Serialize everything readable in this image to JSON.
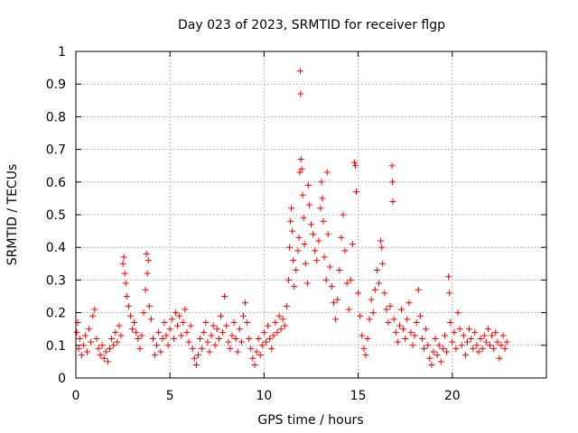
{
  "chart_data": {
    "type": "scatter",
    "title": "Day 023 of 2023, SRMTID for receiver flgp",
    "xlabel": "GPS time / hours",
    "ylabel": "SRMTID / TECUs",
    "xlim": [
      0,
      25
    ],
    "ylim": [
      0,
      1
    ],
    "xticks": [
      0,
      5,
      10,
      15,
      20
    ],
    "yticks": [
      0,
      0.1,
      0.2,
      0.3,
      0.4,
      0.5,
      0.6,
      0.7,
      0.8,
      0.9,
      1
    ],
    "xtick_labels": [
      "0",
      "5",
      "10",
      "15",
      "20"
    ],
    "ytick_labels": [
      "0",
      "0.1",
      "0.2",
      "0.3",
      "0.4",
      "0.5",
      "0.6",
      "0.7",
      "0.8",
      "0.9",
      "1"
    ],
    "grid": true,
    "marker": "plus",
    "marker_color": "#ff0000",
    "series": [
      {
        "name": "SRMTID",
        "points": [
          [
            0.05,
            0.14
          ],
          [
            0.1,
            0.17
          ],
          [
            0.15,
            0.09
          ],
          [
            0.2,
            0.12
          ],
          [
            0.3,
            0.07
          ],
          [
            0.4,
            0.1
          ],
          [
            0.5,
            0.13
          ],
          [
            0.6,
            0.08
          ],
          [
            0.7,
            0.15
          ],
          [
            0.8,
            0.11
          ],
          [
            0.9,
            0.19
          ],
          [
            1.0,
            0.21
          ],
          [
            1.1,
            0.12
          ],
          [
            1.2,
            0.09
          ],
          [
            1.3,
            0.07
          ],
          [
            1.4,
            0.1
          ],
          [
            1.5,
            0.06
          ],
          [
            1.6,
            0.08
          ],
          [
            1.7,
            0.05
          ],
          [
            1.8,
            0.09
          ],
          [
            1.9,
            0.12
          ],
          [
            2.0,
            0.1
          ],
          [
            2.1,
            0.14
          ],
          [
            2.2,
            0.11
          ],
          [
            2.3,
            0.16
          ],
          [
            2.4,
            0.13
          ],
          [
            2.5,
            0.35
          ],
          [
            2.55,
            0.37
          ],
          [
            2.6,
            0.32
          ],
          [
            2.65,
            0.29
          ],
          [
            2.7,
            0.25
          ],
          [
            2.8,
            0.22
          ],
          [
            2.9,
            0.19
          ],
          [
            3.0,
            0.15
          ],
          [
            3.1,
            0.17
          ],
          [
            3.2,
            0.14
          ],
          [
            3.3,
            0.12
          ],
          [
            3.4,
            0.09
          ],
          [
            3.5,
            0.13
          ],
          [
            3.6,
            0.2
          ],
          [
            3.7,
            0.27
          ],
          [
            3.75,
            0.38
          ],
          [
            3.8,
            0.32
          ],
          [
            3.85,
            0.36
          ],
          [
            3.9,
            0.22
          ],
          [
            4.0,
            0.18
          ],
          [
            4.1,
            0.12
          ],
          [
            4.2,
            0.07
          ],
          [
            4.3,
            0.1
          ],
          [
            4.4,
            0.14
          ],
          [
            4.5,
            0.08
          ],
          [
            4.6,
            0.12
          ],
          [
            4.7,
            0.17
          ],
          [
            4.8,
            0.13
          ],
          [
            4.9,
            0.1
          ],
          [
            5.0,
            0.15
          ],
          [
            5.1,
            0.18
          ],
          [
            5.2,
            0.12
          ],
          [
            5.3,
            0.2
          ],
          [
            5.4,
            0.16
          ],
          [
            5.5,
            0.19
          ],
          [
            5.6,
            0.13
          ],
          [
            5.7,
            0.17
          ],
          [
            5.8,
            0.21
          ],
          [
            5.9,
            0.14
          ],
          [
            6.0,
            0.11
          ],
          [
            6.1,
            0.16
          ],
          [
            6.2,
            0.09
          ],
          [
            6.3,
            0.06
          ],
          [
            6.4,
            0.04
          ],
          [
            6.5,
            0.07
          ],
          [
            6.6,
            0.12
          ],
          [
            6.7,
            0.09
          ],
          [
            6.8,
            0.14
          ],
          [
            6.9,
            0.17
          ],
          [
            7.0,
            0.11
          ],
          [
            7.1,
            0.08
          ],
          [
            7.2,
            0.13
          ],
          [
            7.3,
            0.16
          ],
          [
            7.4,
            0.1
          ],
          [
            7.5,
            0.15
          ],
          [
            7.6,
            0.12
          ],
          [
            7.7,
            0.19
          ],
          [
            7.8,
            0.14
          ],
          [
            7.9,
            0.25
          ],
          [
            8.0,
            0.16
          ],
          [
            8.1,
            0.11
          ],
          [
            8.2,
            0.09
          ],
          [
            8.3,
            0.13
          ],
          [
            8.4,
            0.17
          ],
          [
            8.5,
            0.12
          ],
          [
            8.6,
            0.08
          ],
          [
            8.7,
            0.15
          ],
          [
            8.8,
            0.11
          ],
          [
            8.9,
            0.19
          ],
          [
            9.0,
            0.23
          ],
          [
            9.1,
            0.17
          ],
          [
            9.2,
            0.12
          ],
          [
            9.3,
            0.09
          ],
          [
            9.4,
            0.06
          ],
          [
            9.5,
            0.04
          ],
          [
            9.6,
            0.08
          ],
          [
            9.7,
            0.12
          ],
          [
            9.8,
            0.07
          ],
          [
            9.9,
            0.1
          ],
          [
            10.0,
            0.14
          ],
          [
            10.1,
            0.11
          ],
          [
            10.2,
            0.16
          ],
          [
            10.3,
            0.12
          ],
          [
            10.4,
            0.09
          ],
          [
            10.5,
            0.13
          ],
          [
            10.6,
            0.17
          ],
          [
            10.7,
            0.14
          ],
          [
            10.8,
            0.19
          ],
          [
            10.9,
            0.15
          ],
          [
            11.0,
            0.18
          ],
          [
            11.1,
            0.16
          ],
          [
            11.2,
            0.22
          ],
          [
            11.3,
            0.3
          ],
          [
            11.35,
            0.4
          ],
          [
            11.4,
            0.48
          ],
          [
            11.45,
            0.52
          ],
          [
            11.5,
            0.45
          ],
          [
            11.55,
            0.36
          ],
          [
            11.6,
            0.28
          ],
          [
            11.7,
            0.33
          ],
          [
            11.8,
            0.39
          ],
          [
            11.85,
            0.43
          ],
          [
            11.9,
            0.63
          ],
          [
            11.92,
            0.94
          ],
          [
            11.94,
            0.87
          ],
          [
            11.96,
            0.67
          ],
          [
            12.0,
            0.64
          ],
          [
            12.05,
            0.56
          ],
          [
            12.1,
            0.49
          ],
          [
            12.15,
            0.41
          ],
          [
            12.2,
            0.35
          ],
          [
            12.3,
            0.29
          ],
          [
            12.35,
            0.59
          ],
          [
            12.4,
            0.53
          ],
          [
            12.5,
            0.47
          ],
          [
            12.6,
            0.44
          ],
          [
            12.7,
            0.39
          ],
          [
            12.8,
            0.36
          ],
          [
            12.9,
            0.42
          ],
          [
            13.0,
            0.52
          ],
          [
            13.05,
            0.6
          ],
          [
            13.1,
            0.55
          ],
          [
            13.15,
            0.48
          ],
          [
            13.2,
            0.37
          ],
          [
            13.3,
            0.3
          ],
          [
            13.35,
            0.63
          ],
          [
            13.4,
            0.44
          ],
          [
            13.5,
            0.34
          ],
          [
            13.6,
            0.28
          ],
          [
            13.7,
            0.23
          ],
          [
            13.8,
            0.18
          ],
          [
            13.9,
            0.24
          ],
          [
            14.0,
            0.33
          ],
          [
            14.1,
            0.43
          ],
          [
            14.2,
            0.5
          ],
          [
            14.3,
            0.39
          ],
          [
            14.4,
            0.29
          ],
          [
            14.5,
            0.21
          ],
          [
            14.6,
            0.3
          ],
          [
            14.7,
            0.41
          ],
          [
            14.8,
            0.66
          ],
          [
            14.85,
            0.65
          ],
          [
            14.9,
            0.57
          ],
          [
            15.0,
            0.26
          ],
          [
            15.1,
            0.19
          ],
          [
            15.2,
            0.13
          ],
          [
            15.3,
            0.09
          ],
          [
            15.4,
            0.07
          ],
          [
            15.5,
            0.12
          ],
          [
            15.6,
            0.18
          ],
          [
            15.7,
            0.24
          ],
          [
            15.8,
            0.2
          ],
          [
            15.9,
            0.27
          ],
          [
            16.0,
            0.33
          ],
          [
            16.1,
            0.29
          ],
          [
            16.2,
            0.42
          ],
          [
            16.25,
            0.4
          ],
          [
            16.3,
            0.35
          ],
          [
            16.4,
            0.26
          ],
          [
            16.5,
            0.21
          ],
          [
            16.6,
            0.17
          ],
          [
            16.7,
            0.22
          ],
          [
            16.8,
            0.65
          ],
          [
            16.82,
            0.6
          ],
          [
            16.84,
            0.54
          ],
          [
            16.9,
            0.18
          ],
          [
            17.0,
            0.14
          ],
          [
            17.1,
            0.11
          ],
          [
            17.2,
            0.16
          ],
          [
            17.3,
            0.21
          ],
          [
            17.4,
            0.15
          ],
          [
            17.5,
            0.12
          ],
          [
            17.6,
            0.18
          ],
          [
            17.7,
            0.23
          ],
          [
            17.8,
            0.14
          ],
          [
            17.9,
            0.1
          ],
          [
            18.0,
            0.13
          ],
          [
            18.1,
            0.17
          ],
          [
            18.2,
            0.27
          ],
          [
            18.3,
            0.19
          ],
          [
            18.4,
            0.12
          ],
          [
            18.5,
            0.09
          ],
          [
            18.6,
            0.15
          ],
          [
            18.7,
            0.1
          ],
          [
            18.8,
            0.06
          ],
          [
            18.9,
            0.04
          ],
          [
            19.0,
            0.08
          ],
          [
            19.1,
            0.12
          ],
          [
            19.2,
            0.07
          ],
          [
            19.3,
            0.1
          ],
          [
            19.4,
            0.05
          ],
          [
            19.5,
            0.09
          ],
          [
            19.6,
            0.13
          ],
          [
            19.7,
            0.08
          ],
          [
            19.8,
            0.31
          ],
          [
            19.85,
            0.26
          ],
          [
            19.9,
            0.17
          ],
          [
            20.0,
            0.11
          ],
          [
            20.1,
            0.14
          ],
          [
            20.2,
            0.09
          ],
          [
            20.3,
            0.2
          ],
          [
            20.4,
            0.15
          ],
          [
            20.5,
            0.1
          ],
          [
            20.6,
            0.13
          ],
          [
            20.7,
            0.07
          ],
          [
            20.8,
            0.11
          ],
          [
            20.9,
            0.15
          ],
          [
            21.0,
            0.12
          ],
          [
            21.1,
            0.09
          ],
          [
            21.2,
            0.14
          ],
          [
            21.3,
            0.1
          ],
          [
            21.4,
            0.08
          ],
          [
            21.5,
            0.12
          ],
          [
            21.6,
            0.09
          ],
          [
            21.7,
            0.13
          ],
          [
            21.8,
            0.11
          ],
          [
            21.9,
            0.15
          ],
          [
            22.0,
            0.1
          ],
          [
            22.1,
            0.13
          ],
          [
            22.2,
            0.09
          ],
          [
            22.3,
            0.14
          ],
          [
            22.4,
            0.11
          ],
          [
            22.5,
            0.06
          ],
          [
            22.6,
            0.1
          ],
          [
            22.7,
            0.13
          ],
          [
            22.8,
            0.09
          ],
          [
            22.9,
            0.11
          ]
        ]
      }
    ]
  }
}
